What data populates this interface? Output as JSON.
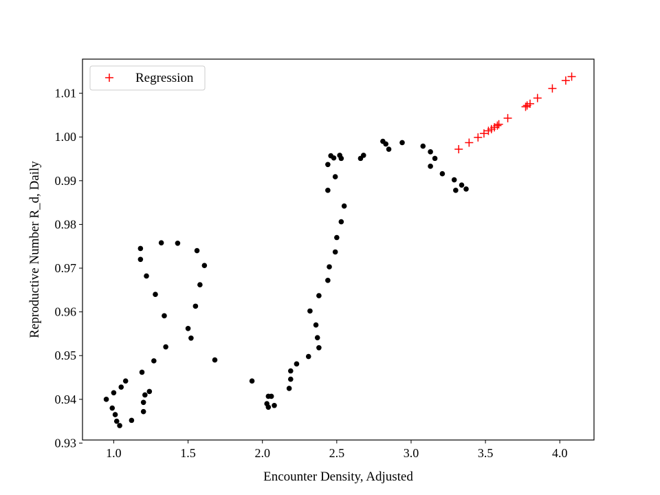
{
  "chart_data": {
    "type": "scatter",
    "title": "",
    "xlabel": "Encounter Density, Adjusted",
    "ylabel": "Reproductive Number R_d, Daily",
    "xlim": [
      0.79,
      4.23
    ],
    "ylim": [
      0.9307,
      1.0178
    ],
    "xticks": [
      "1.0",
      "1.5",
      "2.0",
      "2.5",
      "3.0",
      "3.5",
      "4.0"
    ],
    "yticks": [
      "0.93",
      "0.94",
      "0.95",
      "0.96",
      "0.97",
      "0.98",
      "0.99",
      "1.00",
      "1.01"
    ],
    "grid": false,
    "legend": {
      "position": "top-left",
      "entries": [
        "Regression"
      ]
    },
    "series": [
      {
        "marker": "dot",
        "color": "#000000",
        "points": [
          [
            0.95,
            0.94
          ],
          [
            0.99,
            0.938
          ],
          [
            1.0,
            0.9415
          ],
          [
            1.01,
            0.9365
          ],
          [
            1.02,
            0.935
          ],
          [
            1.04,
            0.934
          ],
          [
            1.05,
            0.9428
          ],
          [
            1.08,
            0.9442
          ],
          [
            1.12,
            0.9352
          ],
          [
            1.18,
            0.9745
          ],
          [
            1.18,
            0.972
          ],
          [
            1.19,
            0.9462
          ],
          [
            1.2,
            0.9372
          ],
          [
            1.2,
            0.9393
          ],
          [
            1.21,
            0.941
          ],
          [
            1.22,
            0.9682
          ],
          [
            1.24,
            0.9418
          ],
          [
            1.27,
            0.9488
          ],
          [
            1.28,
            0.964
          ],
          [
            1.32,
            0.9758
          ],
          [
            1.34,
            0.9591
          ],
          [
            1.35,
            0.952
          ],
          [
            1.43,
            0.9757
          ],
          [
            1.5,
            0.9562
          ],
          [
            1.52,
            0.954
          ],
          [
            1.55,
            0.9613
          ],
          [
            1.56,
            0.974
          ],
          [
            1.58,
            0.9662
          ],
          [
            1.61,
            0.9706
          ],
          [
            1.68,
            0.949
          ],
          [
            1.93,
            0.9442
          ],
          [
            2.03,
            0.939
          ],
          [
            2.04,
            0.9407
          ],
          [
            2.04,
            0.9382
          ],
          [
            2.06,
            0.9407
          ],
          [
            2.08,
            0.9386
          ],
          [
            2.18,
            0.9425
          ],
          [
            2.19,
            0.9446
          ],
          [
            2.19,
            0.9465
          ],
          [
            2.23,
            0.9481
          ],
          [
            2.31,
            0.9498
          ],
          [
            2.32,
            0.9602
          ],
          [
            2.36,
            0.957
          ],
          [
            2.37,
            0.9541
          ],
          [
            2.38,
            0.9518
          ],
          [
            2.38,
            0.9637
          ],
          [
            2.44,
            0.9672
          ],
          [
            2.44,
            0.9878
          ],
          [
            2.44,
            0.9937
          ],
          [
            2.45,
            0.9703
          ],
          [
            2.46,
            0.9957
          ],
          [
            2.48,
            0.9952
          ],
          [
            2.49,
            0.9737
          ],
          [
            2.49,
            0.9909
          ],
          [
            2.5,
            0.977
          ],
          [
            2.52,
            0.9958
          ],
          [
            2.53,
            0.9806
          ],
          [
            2.53,
            0.9951
          ],
          [
            2.55,
            0.9842
          ],
          [
            2.66,
            0.9951
          ],
          [
            2.68,
            0.9958
          ],
          [
            2.81,
            0.999
          ],
          [
            2.83,
            0.9984
          ],
          [
            2.85,
            0.9972
          ],
          [
            2.94,
            0.9987
          ],
          [
            3.08,
            0.9979
          ],
          [
            3.13,
            0.9933
          ],
          [
            3.13,
            0.9966
          ],
          [
            3.16,
            0.9951
          ],
          [
            3.21,
            0.9916
          ],
          [
            3.29,
            0.9902
          ],
          [
            3.3,
            0.9878
          ],
          [
            3.34,
            0.989
          ],
          [
            3.37,
            0.9881
          ]
        ]
      },
      {
        "name": "Regression",
        "marker": "plus",
        "color": "#ff0000",
        "points": [
          [
            3.32,
            0.9972
          ],
          [
            3.39,
            0.9987
          ],
          [
            3.45,
            0.9999
          ],
          [
            3.49,
            1.0008
          ],
          [
            3.52,
            1.0014
          ],
          [
            3.54,
            1.0018
          ],
          [
            3.56,
            1.0022
          ],
          [
            3.58,
            1.0026
          ],
          [
            3.59,
            1.0029
          ],
          [
            3.65,
            1.0043
          ],
          [
            3.77,
            1.0069
          ],
          [
            3.78,
            1.0072
          ],
          [
            3.8,
            1.0076
          ],
          [
            3.85,
            1.0089
          ],
          [
            3.95,
            1.0111
          ],
          [
            4.04,
            1.0129
          ],
          [
            4.08,
            1.0138
          ]
        ]
      }
    ]
  }
}
